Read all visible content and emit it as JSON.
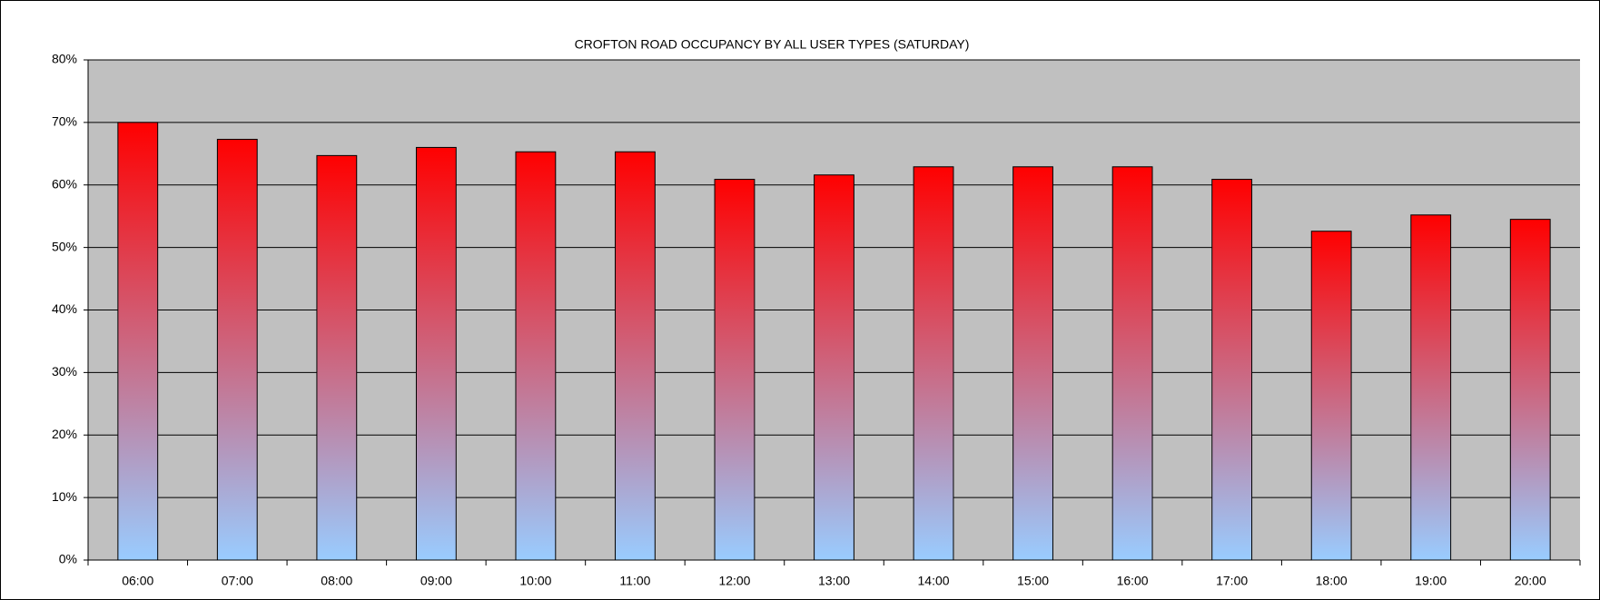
{
  "chart_data": {
    "type": "bar",
    "title": "CROFTON ROAD OCCUPANCY BY ALL USER TYPES (SATURDAY)",
    "categories": [
      "06:00",
      "07:00",
      "08:00",
      "09:00",
      "10:00",
      "11:00",
      "12:00",
      "13:00",
      "14:00",
      "15:00",
      "16:00",
      "17:00",
      "18:00",
      "19:00",
      "20:00"
    ],
    "values": [
      70,
      67.3,
      64.7,
      66.0,
      65.3,
      65.3,
      60.9,
      61.6,
      62.9,
      62.9,
      62.9,
      60.9,
      52.6,
      55.2,
      54.5
    ],
    "gradient": [
      "#ff0000",
      "#99ccff"
    ],
    "ylim": [
      0,
      80
    ],
    "yticks": [
      {
        "value": 0,
        "label": "0%"
      },
      {
        "value": 10,
        "label": "10%"
      },
      {
        "value": 20,
        "label": "20%"
      },
      {
        "value": 30,
        "label": "30%"
      },
      {
        "value": 40,
        "label": "40%"
      },
      {
        "value": 50,
        "label": "50%"
      },
      {
        "value": 60,
        "label": "60%"
      },
      {
        "value": 70,
        "label": "70%"
      },
      {
        "value": 80,
        "label": "80%"
      }
    ],
    "grid": true
  }
}
